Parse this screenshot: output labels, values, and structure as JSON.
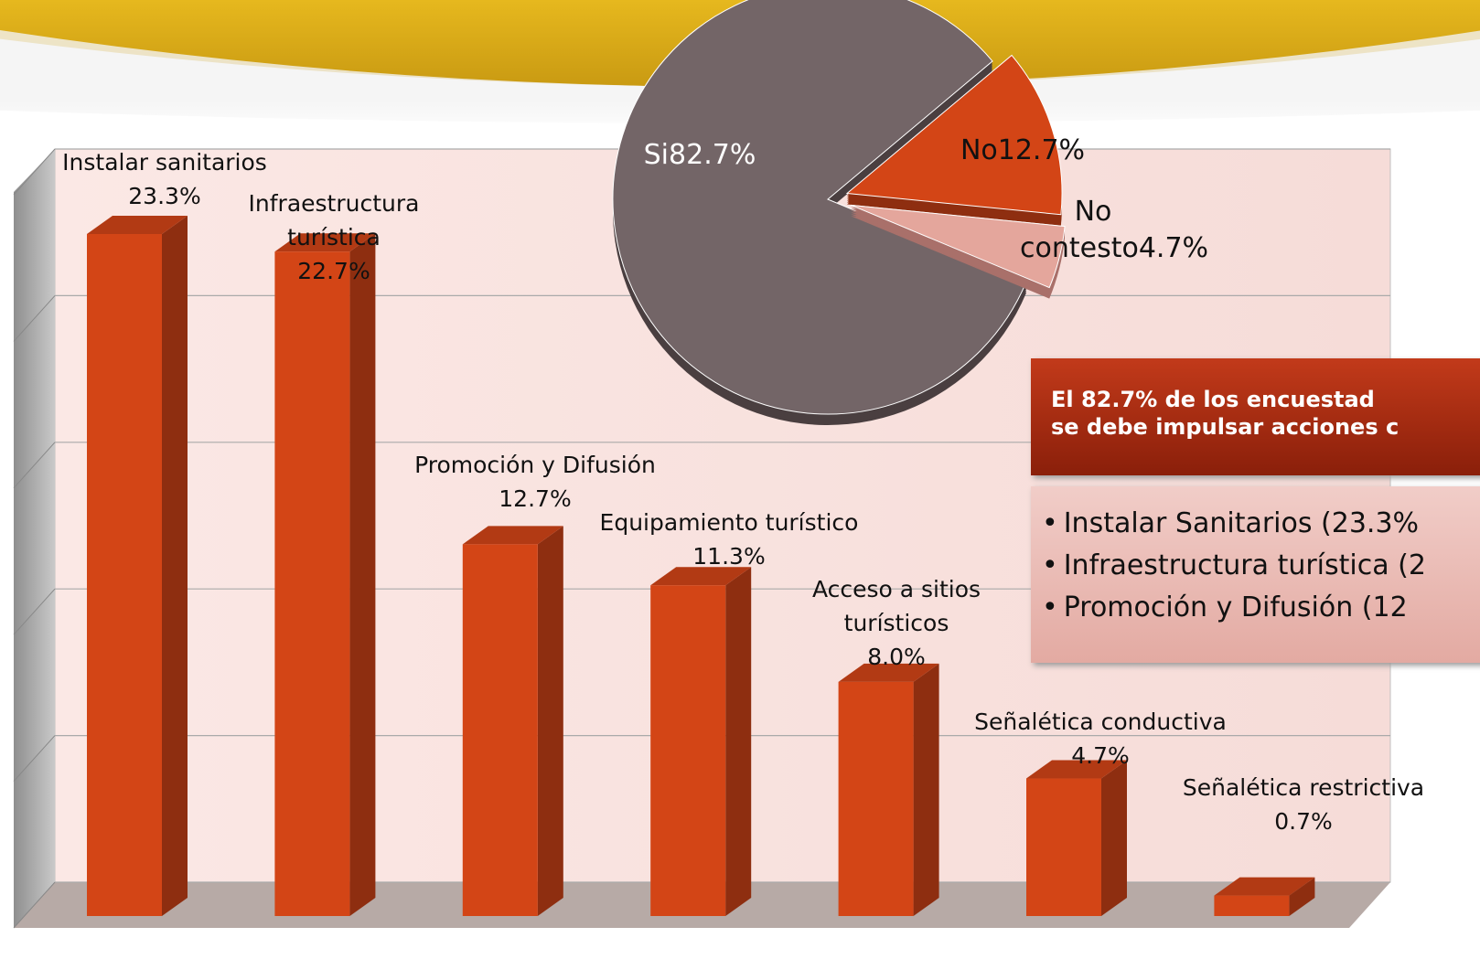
{
  "chart_data": [
    {
      "type": "bar",
      "categories": [
        "Instalar sanitarios",
        "Infraestructura turística",
        "Promoción y Difusión",
        "Equipamiento turístico",
        "Acceso a sitios turísticos",
        "Señalética conductiva",
        "Señalética restrictiva"
      ],
      "values": [
        23.3,
        22.7,
        12.7,
        11.3,
        8,
        4.7,
        0.7
      ],
      "value_labels": [
        "23.3%",
        "22.7%",
        "12.7%",
        "11.3%",
        "8.0%",
        "4.7%",
        "0.7%"
      ],
      "color": "#d34516",
      "ylim": [
        0,
        25
      ],
      "yticks": [
        0,
        5,
        10,
        15,
        20,
        25
      ],
      "grid": true
    },
    {
      "type": "pie",
      "categories": [
        "Si",
        "No",
        "No contesto"
      ],
      "values": [
        82.7,
        12.7,
        4.7
      ],
      "value_labels": [
        "82.7%",
        "12.7%",
        "4.7%"
      ],
      "colors": [
        "#736567",
        "#d34516",
        "#e4a69c"
      ]
    }
  ],
  "callout": {
    "heading": [
      "El 82.7% de los encuestad",
      "se debe impulsar acciones c"
    ],
    "bullets": [
      "Instalar Sanitarios (23.3%",
      "Infraestructura turística (2",
      "Promoción y Difusión (12"
    ]
  }
}
